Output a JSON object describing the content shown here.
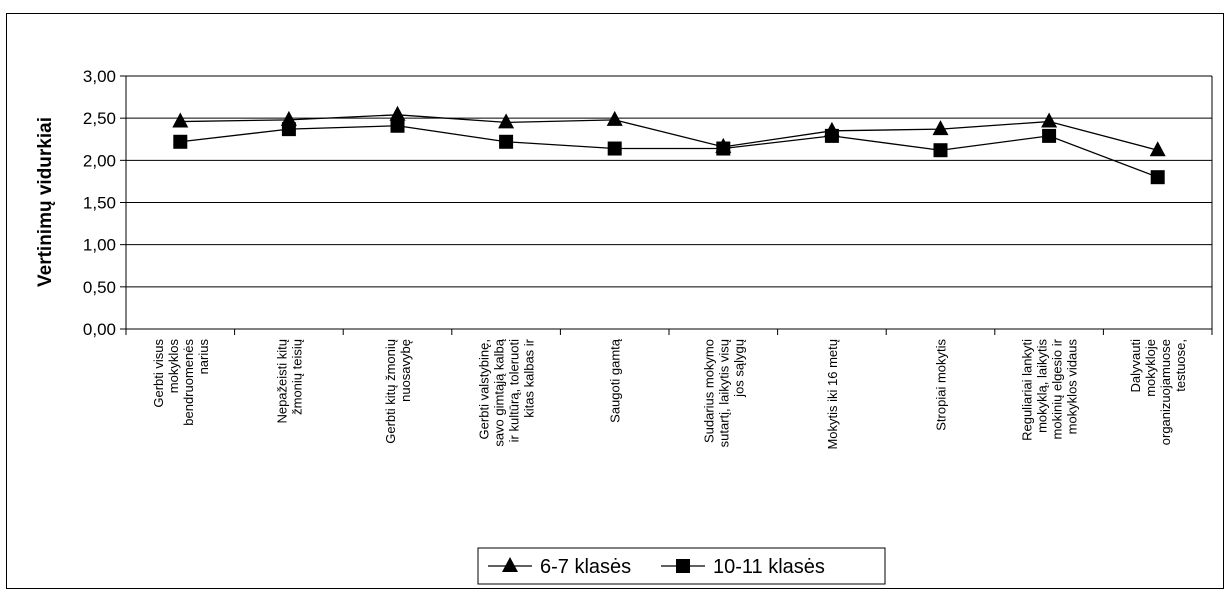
{
  "chart_data": {
    "type": "line",
    "title": "",
    "xlabel": "",
    "ylabel": "Vertinimų vidurkiai",
    "ylim": [
      0,
      3
    ],
    "ytick_step": 0.5,
    "ytick_labels": [
      "0,00",
      "0,50",
      "1,00",
      "1,50",
      "2,00",
      "2,50",
      "3,00"
    ],
    "grid": "horizontal",
    "legend_position": "bottom",
    "categories": [
      [
        "Gerbti visus",
        "mokyklos",
        "bendruomenės",
        "narius"
      ],
      [
        "Nepažeisti kitų",
        "žmonių teisių"
      ],
      [
        "Gerbti kitų žmonių",
        "nuosavybę"
      ],
      [
        "Gerbti valstybinę,",
        "savo gimtąją kalbą",
        "ir kultūrą, toleruoti",
        "kitas kalbas ir"
      ],
      [
        "Saugoti gamtą"
      ],
      [
        "Sudarius mokymo",
        "sutartį, laikytis visų",
        "jos sąlygų"
      ],
      [
        "Mokytis iki 16 metų"
      ],
      [
        "Stropiai mokytis"
      ],
      [
        "Reguliariai lankyti",
        "mokyklą, laikytis",
        "mokinių elgesio ir",
        "mokyklos vidaus"
      ],
      [
        "Dalyvauti",
        "mokykloje",
        "organizuojamuose",
        "testuose,"
      ]
    ],
    "series": [
      {
        "name": "6-7 klasės",
        "marker": "triangle",
        "values": [
          2.46,
          2.48,
          2.54,
          2.45,
          2.48,
          2.16,
          2.35,
          2.37,
          2.46,
          2.12
        ]
      },
      {
        "name": "10-11 klasės",
        "marker": "square",
        "values": [
          2.22,
          2.37,
          2.41,
          2.22,
          2.14,
          2.14,
          2.29,
          2.12,
          2.29,
          1.8
        ]
      }
    ]
  }
}
